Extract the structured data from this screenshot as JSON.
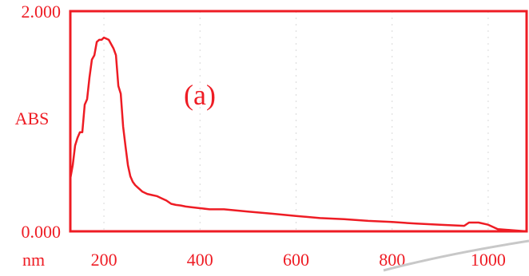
{
  "chart_data": {
    "type": "line",
    "title": "",
    "annotation": "(a)",
    "ylabel": "ABS",
    "xlabel": "nm",
    "xlim": [
      130,
      1080
    ],
    "ylim": [
      0,
      2.0
    ],
    "y_ticks": [
      {
        "value": 2.0,
        "label": "2.000"
      },
      {
        "value": 0.0,
        "label": "0.000"
      }
    ],
    "x_ticks": [
      {
        "value": 200,
        "label": "200"
      },
      {
        "value": 400,
        "label": "400"
      },
      {
        "value": 600,
        "label": "600"
      },
      {
        "value": 800,
        "label": "800"
      },
      {
        "value": 1000,
        "label": "1000"
      }
    ],
    "grid": true,
    "colors": {
      "line": "#ee1c24",
      "text": "#ee1c24",
      "grid": "#d9d9d9"
    },
    "series": [
      {
        "x": [
          130,
          135,
          140,
          145,
          150,
          155,
          160,
          165,
          170,
          175,
          180,
          185,
          190,
          195,
          200,
          205,
          210,
          215,
          220,
          225,
          230,
          235,
          240,
          245,
          250,
          255,
          260,
          265,
          270,
          275,
          280,
          290,
          300,
          310,
          320,
          330,
          340,
          350,
          360,
          370,
          380,
          400,
          420,
          450,
          500,
          550,
          600,
          650,
          700,
          750,
          800,
          850,
          900,
          950,
          960,
          980,
          1000,
          1020,
          1050,
          1080
        ],
        "y": [
          0.48,
          0.6,
          0.78,
          0.85,
          0.9,
          0.9,
          1.15,
          1.2,
          1.4,
          1.56,
          1.6,
          1.72,
          1.74,
          1.74,
          1.76,
          1.75,
          1.74,
          1.7,
          1.66,
          1.6,
          1.32,
          1.25,
          0.95,
          0.77,
          0.6,
          0.5,
          0.45,
          0.42,
          0.4,
          0.38,
          0.36,
          0.34,
          0.33,
          0.32,
          0.3,
          0.28,
          0.25,
          0.24,
          0.235,
          0.225,
          0.22,
          0.21,
          0.2,
          0.2,
          0.18,
          0.16,
          0.14,
          0.12,
          0.11,
          0.095,
          0.085,
          0.07,
          0.06,
          0.05,
          0.08,
          0.08,
          0.06,
          0.02,
          0.01,
          0.0
        ]
      }
    ]
  }
}
